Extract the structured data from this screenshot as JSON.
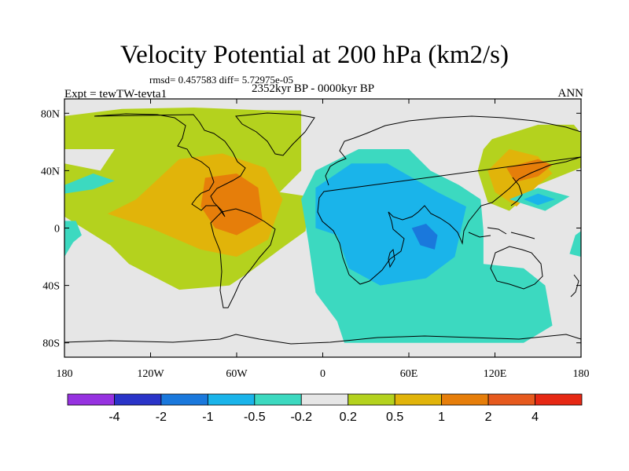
{
  "chart_data": {
    "type": "heatmap",
    "title": "Velocity Potential at 200 hPa (km2/s)",
    "stats_text": "rmsd= 0.457583 diff= 5.72975e-05",
    "left_label": "Expt = tewTW-tevta1",
    "center_label": "2352kyr BP - 0000kyr BP",
    "right_label": "ANN",
    "projection": "cylindrical equidistant",
    "xlim": [
      -180,
      180
    ],
    "ylim": [
      -90,
      90
    ],
    "x_ticks": [
      {
        "value": -180,
        "label": "180"
      },
      {
        "value": -120,
        "label": "120W"
      },
      {
        "value": -60,
        "label": "60W"
      },
      {
        "value": 0,
        "label": "0"
      },
      {
        "value": 60,
        "label": "60E"
      },
      {
        "value": 120,
        "label": "120E"
      },
      {
        "value": 180,
        "label": "180"
      }
    ],
    "y_ticks": [
      {
        "value": 80,
        "label": "80N"
      },
      {
        "value": 40,
        "label": "40N"
      },
      {
        "value": 0,
        "label": "0"
      },
      {
        "value": -40,
        "label": "40S"
      },
      {
        "value": -80,
        "label": "80S"
      }
    ],
    "colorbar": {
      "labels": [
        "-4",
        "-2",
        "-1",
        "-0.5",
        "-0.2",
        "0.2",
        "0.5",
        "1",
        "2",
        "4"
      ],
      "colors": [
        "#9632e0",
        "#2a34c8",
        "#1a78dc",
        "#1ab4ea",
        "#3cd9c0",
        "#e6e6e6",
        "#b4d21e",
        "#e1b40a",
        "#e67e0a",
        "#e65a1e",
        "#e62814"
      ]
    },
    "field_regions": [
      {
        "level": 0.5,
        "color": "#b4d21e",
        "lon": -180,
        "lat": 78,
        "points": [
          [
            -180,
            78
          ],
          [
            -140,
            83
          ],
          [
            -90,
            84
          ],
          [
            -40,
            82
          ],
          [
            -15,
            82
          ],
          [
            -15,
            40
          ],
          [
            -30,
            25
          ],
          [
            -10,
            22
          ],
          [
            -12,
            -2
          ],
          [
            -30,
            -15
          ],
          [
            -50,
            -30
          ],
          [
            -65,
            -40
          ],
          [
            -100,
            -43
          ],
          [
            -135,
            -25
          ],
          [
            -148,
            -12
          ],
          [
            -180,
            8
          ],
          [
            -180,
            45
          ],
          [
            -155,
            40
          ],
          [
            -145,
            55
          ],
          [
            -180,
            55
          ]
        ]
      },
      {
        "level": 0.5,
        "color": "#b4d21e",
        "lon": 150,
        "lat": 80,
        "points": [
          [
            118,
            62
          ],
          [
            150,
            72
          ],
          [
            175,
            72
          ],
          [
            180,
            66
          ],
          [
            180,
            42
          ],
          [
            150,
            30
          ],
          [
            130,
            12
          ],
          [
            115,
            18
          ],
          [
            108,
            40
          ],
          [
            112,
            55
          ]
        ]
      },
      {
        "level": 1,
        "color": "#e1b40a",
        "lon": -90,
        "lat": 40,
        "points": [
          [
            -100,
            48
          ],
          [
            -70,
            52
          ],
          [
            -40,
            42
          ],
          [
            -28,
            20
          ],
          [
            -38,
            -8
          ],
          [
            -60,
            -20
          ],
          [
            -85,
            -15
          ],
          [
            -120,
            0
          ],
          [
            -150,
            10
          ],
          [
            -130,
            20
          ]
        ]
      },
      {
        "level": 1,
        "color": "#e1b40a",
        "lon": 130,
        "lat": 40,
        "points": [
          [
            115,
            40
          ],
          [
            130,
            55
          ],
          [
            150,
            50
          ],
          [
            160,
            38
          ],
          [
            150,
            30
          ],
          [
            135,
            15
          ],
          [
            120,
            25
          ]
        ]
      },
      {
        "level": 2,
        "color": "#e67e0a",
        "lon": -60,
        "lat": 20,
        "points": [
          [
            -82,
            35
          ],
          [
            -60,
            38
          ],
          [
            -45,
            28
          ],
          [
            -42,
            5
          ],
          [
            -60,
            -5
          ],
          [
            -75,
            0
          ],
          [
            -85,
            15
          ]
        ]
      },
      {
        "level": 2,
        "color": "#e67e0a",
        "lon": 145,
        "lat": 40,
        "points": [
          [
            128,
            42
          ],
          [
            150,
            48
          ],
          [
            160,
            44
          ],
          [
            150,
            36
          ],
          [
            134,
            32
          ]
        ]
      },
      {
        "level": -0.5,
        "color": "#3cd9c0",
        "lon": 30,
        "lat": 0,
        "points": [
          [
            -5,
            40
          ],
          [
            25,
            55
          ],
          [
            60,
            55
          ],
          [
            75,
            40
          ],
          [
            95,
            30
          ],
          [
            110,
            20
          ],
          [
            112,
            -2
          ],
          [
            112,
            -25
          ],
          [
            140,
            -28
          ],
          [
            155,
            -40
          ],
          [
            160,
            -68
          ],
          [
            140,
            -80
          ],
          [
            15,
            -80
          ],
          [
            10,
            -65
          ],
          [
            -5,
            -45
          ],
          [
            -10,
            -10
          ],
          [
            -15,
            20
          ]
        ]
      },
      {
        "level": -0.5,
        "color": "#3cd9c0",
        "lon": -160,
        "lat": 32,
        "points": [
          [
            -180,
            30
          ],
          [
            -160,
            38
          ],
          [
            -145,
            33
          ],
          [
            -160,
            27
          ],
          [
            -180,
            24
          ]
        ]
      },
      {
        "level": -0.5,
        "color": "#3cd9c0",
        "lon": -180,
        "lat": -10,
        "points": [
          [
            -180,
            -20
          ],
          [
            -174,
            -10
          ],
          [
            -168,
            -5
          ],
          [
            -172,
            5
          ],
          [
            -180,
            5
          ]
        ]
      },
      {
        "level": -0.5,
        "color": "#3cd9c0",
        "lon": 150,
        "lat": 20,
        "points": [
          [
            130,
            20
          ],
          [
            150,
            28
          ],
          [
            172,
            22
          ],
          [
            155,
            12
          ]
        ]
      },
      {
        "level": -0.5,
        "color": "#3cd9c0",
        "lon": 176,
        "lat": -10,
        "points": [
          [
            172,
            -18
          ],
          [
            176,
            -5
          ],
          [
            180,
            -2
          ],
          [
            180,
            -20
          ]
        ]
      },
      {
        "level": -1,
        "color": "#1ab4ea",
        "lon": 35,
        "lat": 5,
        "points": [
          [
            -5,
            28
          ],
          [
            20,
            45
          ],
          [
            45,
            45
          ],
          [
            80,
            25
          ],
          [
            100,
            15
          ],
          [
            92,
            -20
          ],
          [
            72,
            -35
          ],
          [
            40,
            -40
          ],
          [
            18,
            -28
          ],
          [
            10,
            -5
          ],
          [
            -5,
            0
          ]
        ]
      },
      {
        "level": -1,
        "color": "#1ab4ea",
        "lon": 150,
        "lat": 20,
        "points": [
          [
            140,
            20
          ],
          [
            150,
            24
          ],
          [
            162,
            20
          ],
          [
            150,
            16
          ]
        ]
      },
      {
        "level": -2,
        "color": "#1a78dc",
        "lon": 70,
        "lat": -5,
        "points": [
          [
            62,
            0
          ],
          [
            72,
            3
          ],
          [
            80,
            -5
          ],
          [
            78,
            -15
          ],
          [
            68,
            -12
          ]
        ]
      }
    ],
    "background_color": "#e6e6e6",
    "coastline_color": "#000000"
  }
}
